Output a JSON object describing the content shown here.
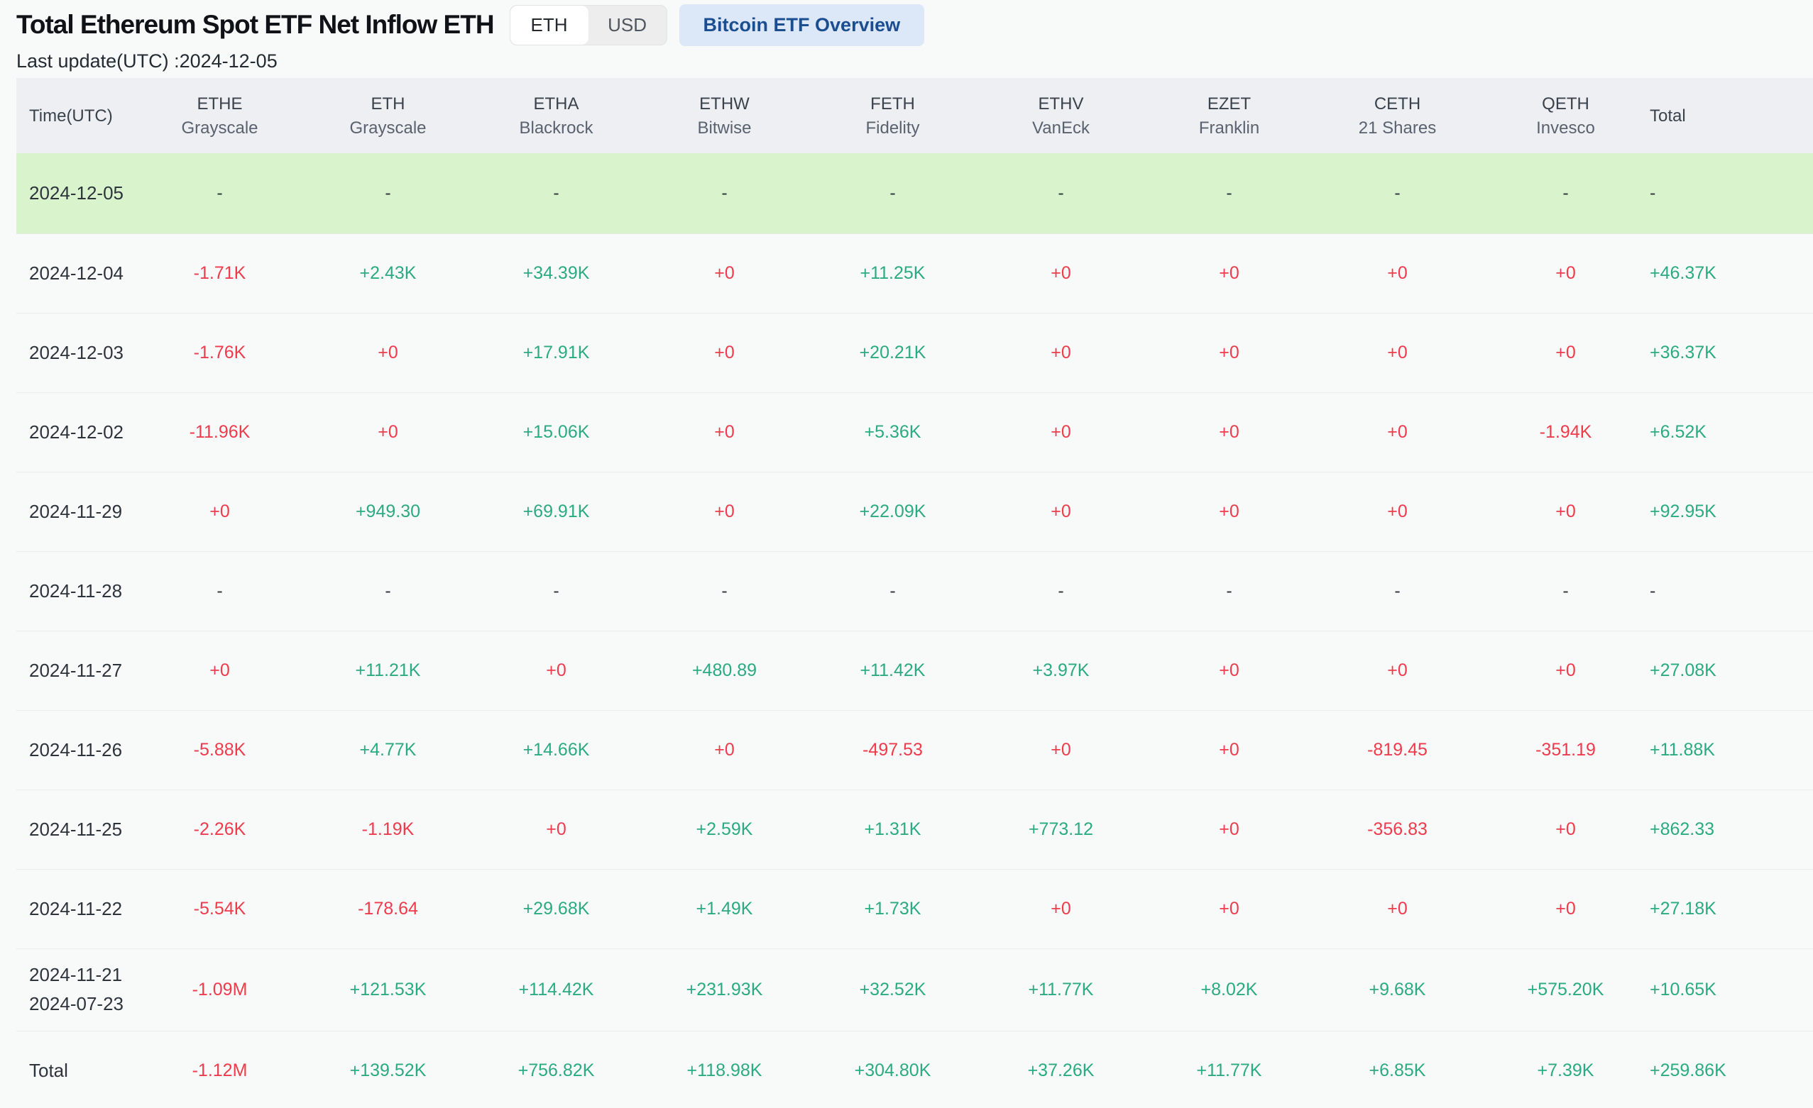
{
  "header": {
    "title": "Total Ethereum Spot ETF Net Inflow ETH",
    "currency_toggle": {
      "options": [
        "ETH",
        "USD"
      ],
      "selected": "ETH"
    },
    "overview_button_label": "Bitcoin ETF Overview",
    "last_update": "Last update(UTC) :2024-12-05"
  },
  "table": {
    "columns": [
      {
        "ticker": "Time(UTC)",
        "issuer": ""
      },
      {
        "ticker": "ETHE",
        "issuer": "Grayscale"
      },
      {
        "ticker": "ETH",
        "issuer": "Grayscale"
      },
      {
        "ticker": "ETHA",
        "issuer": "Blackrock"
      },
      {
        "ticker": "ETHW",
        "issuer": "Bitwise"
      },
      {
        "ticker": "FETH",
        "issuer": "Fidelity"
      },
      {
        "ticker": "ETHV",
        "issuer": "VanEck"
      },
      {
        "ticker": "EZET",
        "issuer": "Franklin"
      },
      {
        "ticker": "CETH",
        "issuer": "21 Shares"
      },
      {
        "ticker": "QETH",
        "issuer": "Invesco"
      },
      {
        "ticker": "Total",
        "issuer": ""
      }
    ],
    "rows": [
      {
        "date": "2024-12-05",
        "date2": "",
        "highlight": true,
        "values": [
          "-",
          "-",
          "-",
          "-",
          "-",
          "-",
          "-",
          "-",
          "-",
          "-"
        ]
      },
      {
        "date": "2024-12-04",
        "date2": "",
        "values": [
          "-1.71K",
          "+2.43K",
          "+34.39K",
          "+0",
          "+11.25K",
          "+0",
          "+0",
          "+0",
          "+0",
          "+46.37K"
        ]
      },
      {
        "date": "2024-12-03",
        "date2": "",
        "values": [
          "-1.76K",
          "+0",
          "+17.91K",
          "+0",
          "+20.21K",
          "+0",
          "+0",
          "+0",
          "+0",
          "+36.37K"
        ]
      },
      {
        "date": "2024-12-02",
        "date2": "",
        "values": [
          "-11.96K",
          "+0",
          "+15.06K",
          "+0",
          "+5.36K",
          "+0",
          "+0",
          "+0",
          "-1.94K",
          "+6.52K"
        ]
      },
      {
        "date": "2024-11-29",
        "date2": "",
        "values": [
          "+0",
          "+949.30",
          "+69.91K",
          "+0",
          "+22.09K",
          "+0",
          "+0",
          "+0",
          "+0",
          "+92.95K"
        ]
      },
      {
        "date": "2024-11-28",
        "date2": "",
        "values": [
          "-",
          "-",
          "-",
          "-",
          "-",
          "-",
          "-",
          "-",
          "-",
          "-"
        ]
      },
      {
        "date": "2024-11-27",
        "date2": "",
        "values": [
          "+0",
          "+11.21K",
          "+0",
          "+480.89",
          "+11.42K",
          "+3.97K",
          "+0",
          "+0",
          "+0",
          "+27.08K"
        ]
      },
      {
        "date": "2024-11-26",
        "date2": "",
        "values": [
          "-5.88K",
          "+4.77K",
          "+14.66K",
          "+0",
          "-497.53",
          "+0",
          "+0",
          "-819.45",
          "-351.19",
          "+11.88K"
        ]
      },
      {
        "date": "2024-11-25",
        "date2": "",
        "values": [
          "-2.26K",
          "-1.19K",
          "+0",
          "+2.59K",
          "+1.31K",
          "+773.12",
          "+0",
          "-356.83",
          "+0",
          "+862.33"
        ]
      },
      {
        "date": "2024-11-22",
        "date2": "",
        "values": [
          "-5.54K",
          "-178.64",
          "+29.68K",
          "+1.49K",
          "+1.73K",
          "+0",
          "+0",
          "+0",
          "+0",
          "+27.18K"
        ]
      },
      {
        "date": "2024-11-21",
        "date2": "2024-07-23",
        "values": [
          "-1.09M",
          "+121.53K",
          "+114.42K",
          "+231.93K",
          "+32.52K",
          "+11.77K",
          "+8.02K",
          "+9.68K",
          "+575.20K",
          "+10.65K"
        ]
      },
      {
        "date": "Total",
        "date2": "",
        "is_total": true,
        "values": [
          "-1.12M",
          "+139.52K",
          "+756.82K",
          "+118.98K",
          "+304.80K",
          "+37.26K",
          "+11.77K",
          "+6.85K",
          "+7.39K",
          "+259.86K"
        ]
      }
    ]
  },
  "colors": {
    "positive": "#2bab81",
    "negative": "#ef3b4c",
    "highlight_row_bg": "#d9f4cd",
    "header_row_bg": "#edeff3",
    "overview_button_bg": "#dce8f8",
    "overview_button_fg": "#1a4e91"
  }
}
